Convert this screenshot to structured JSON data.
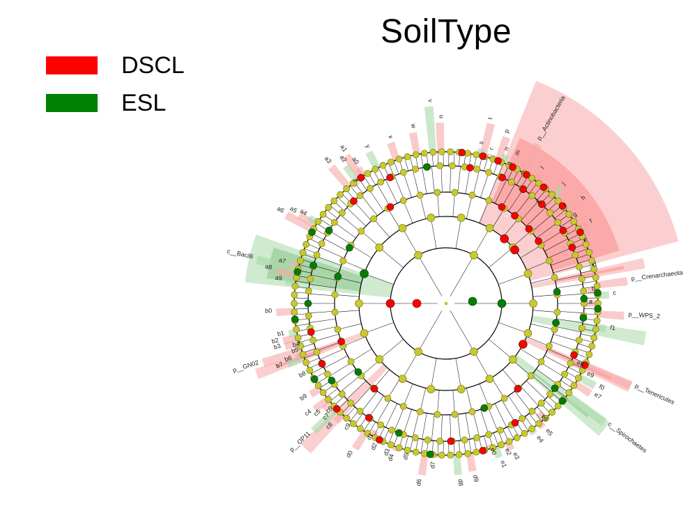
{
  "title": "SoilType",
  "legend": [
    {
      "label": "DSCL",
      "color": "#ff0000"
    },
    {
      "label": "ESL",
      "color": "#008000"
    }
  ],
  "colors": {
    "node_default": "#c8c832",
    "node_stroke": "#6e6e00",
    "dscl": "#ff0000",
    "esl": "#008000",
    "dscl_shade": "#f7a8a8",
    "esl_shade": "#a8d8a8"
  },
  "highlights": [
    {
      "name": "p__Actinobacteria",
      "group": "DSCL",
      "from": 22,
      "to": 75,
      "ring": 5
    },
    {
      "name": "c__Bacilli",
      "group": "ESL",
      "from": 276,
      "to": 290,
      "ring": 4
    },
    {
      "name": "p__Crenarchaeota",
      "group": "DSCL",
      "from": 77,
      "to": 80,
      "ring": 5
    },
    {
      "name": "p__WPS_2",
      "group": "ESL",
      "from": 98,
      "to": 102,
      "ring": 5
    },
    {
      "name": "p__Tenericutes",
      "group": "DSCL",
      "from": 113,
      "to": 116,
      "ring": 5
    },
    {
      "name": "c__Spirochaetes",
      "group": "ESL",
      "from": 126,
      "to": 131,
      "ring": 5
    },
    {
      "name": "p__GN02",
      "group": "DSCL",
      "from": 248,
      "to": 251,
      "ring": 5
    },
    {
      "name": "p__OP11",
      "group": "DSCL",
      "from": 222,
      "to": 226,
      "ring": 5
    }
  ],
  "labels": [
    {
      "text": "p__Actinobacteria",
      "angle": 30,
      "r": 270
    },
    {
      "text": "q",
      "angle": 25,
      "r": 218
    },
    {
      "text": "o",
      "angle": 31,
      "r": 215
    },
    {
      "text": "k",
      "angle": 43,
      "r": 195
    },
    {
      "text": "i",
      "angle": 51,
      "r": 220
    },
    {
      "text": "g",
      "angle": 56,
      "r": 222
    },
    {
      "text": "e",
      "angle": 66,
      "r": 218
    },
    {
      "text": "d",
      "angle": 76,
      "r": 218
    },
    {
      "text": "p__Crenarchaeota",
      "angle": 83,
      "r": 268
    },
    {
      "text": "b",
      "angle": 85,
      "r": 210
    },
    {
      "text": "c",
      "angle": 87,
      "r": 240
    },
    {
      "text": "a",
      "angle": 90,
      "r": 205
    },
    {
      "text": "p__WPS_2",
      "angle": 94,
      "r": 262
    },
    {
      "text": "f1",
      "angle": 99,
      "r": 238
    },
    {
      "text": "e8",
      "angle": 115,
      "r": 206
    },
    {
      "text": "e9",
      "angle": 117,
      "r": 226
    },
    {
      "text": "f0",
      "angle": 119,
      "r": 250
    },
    {
      "text": "e7",
      "angle": 122,
      "r": 250
    },
    {
      "text": "p__Tenericutes",
      "angle": 114,
      "r": 296
    },
    {
      "text": "c__Spirochaetes",
      "angle": 127,
      "r": 290
    },
    {
      "text": "e6",
      "angle": 140,
      "r": 212
    },
    {
      "text": "e5",
      "angle": 142,
      "r": 232
    },
    {
      "text": "e4",
      "angle": 146,
      "r": 232
    },
    {
      "text": "e3",
      "angle": 156,
      "r": 236
    },
    {
      "text": "e2",
      "angle": 158,
      "r": 226
    },
    {
      "text": "e1",
      "angle": 161,
      "r": 240
    },
    {
      "text": "e0",
      "angle": 163,
      "r": 218
    },
    {
      "text": "d9",
      "angle": 171,
      "r": 250
    },
    {
      "text": "d8",
      "angle": 176,
      "r": 253
    },
    {
      "text": "d7",
      "angle": 184,
      "r": 228
    },
    {
      "text": "d6",
      "angle": 188,
      "r": 255
    },
    {
      "text": "d5",
      "angle": 194,
      "r": 222
    },
    {
      "text": "d4",
      "angle": 199,
      "r": 230
    },
    {
      "text": "d3",
      "angle": 201,
      "r": 225
    },
    {
      "text": "d2",
      "angle": 206,
      "r": 225
    },
    {
      "text": "d1",
      "angle": 209,
      "r": 215
    },
    {
      "text": "d0",
      "angle": 212,
      "r": 252
    },
    {
      "text": "c9",
      "angle": 218,
      "r": 222
    },
    {
      "text": "c8",
      "angle": 223,
      "r": 238
    },
    {
      "text": "c7",
      "angle": 226,
      "r": 232
    },
    {
      "text": "c6",
      "angle": 227,
      "r": 222
    },
    {
      "text": "c5",
      "angle": 229,
      "r": 238
    },
    {
      "text": "c4",
      "angle": 231,
      "r": 248
    },
    {
      "text": "p__OP11",
      "angle": 226,
      "r": 270
    },
    {
      "text": "b9",
      "angle": 236,
      "r": 240
    },
    {
      "text": "b8",
      "angle": 243,
      "r": 225
    },
    {
      "text": "b7",
      "angle": 249,
      "r": 250
    },
    {
      "text": "b6",
      "angle": 250,
      "r": 235
    },
    {
      "text": "b5",
      "angle": 252,
      "r": 222
    },
    {
      "text": "b4",
      "angle": 254,
      "r": 218
    },
    {
      "text": "b3",
      "angle": 255,
      "r": 245
    },
    {
      "text": "b2",
      "angle": 257,
      "r": 246
    },
    {
      "text": "b1",
      "angle": 259,
      "r": 236
    },
    {
      "text": "p__GN02",
      "angle": 252,
      "r": 282
    },
    {
      "text": "b0",
      "angle": 267,
      "r": 250
    },
    {
      "text": "a9",
      "angle": 278,
      "r": 238
    },
    {
      "text": "a8",
      "angle": 281,
      "r": 255
    },
    {
      "text": "a7",
      "angle": 284,
      "r": 238
    },
    {
      "text": "c__Bacilli",
      "angle": 283,
      "r": 285
    },
    {
      "text": "a6",
      "angle": 299,
      "r": 268
    },
    {
      "text": "a5",
      "angle": 301,
      "r": 252
    },
    {
      "text": "a4",
      "angle": 302,
      "r": 238
    },
    {
      "text": "z",
      "angle": 323,
      "r": 218
    },
    {
      "text": "a3",
      "angle": 320,
      "r": 262
    },
    {
      "text": "a2",
      "angle": 324,
      "r": 250
    },
    {
      "text": "a1",
      "angle": 326,
      "r": 262
    },
    {
      "text": "a0",
      "angle": 327,
      "r": 238
    },
    {
      "text": "y",
      "angle": 333,
      "r": 250
    },
    {
      "text": "x",
      "angle": 341,
      "r": 250
    },
    {
      "text": "w",
      "angle": 349,
      "r": 256
    },
    {
      "text": "v",
      "angle": 355,
      "r": 290
    },
    {
      "text": "u",
      "angle": 358,
      "r": 266
    },
    {
      "text": "t",
      "angle": 14,
      "r": 272
    },
    {
      "text": "s",
      "angle": 13,
      "r": 234
    },
    {
      "text": "r",
      "angle": 17,
      "r": 230
    },
    {
      "text": "p",
      "angle": 20,
      "r": 260
    },
    {
      "text": "n",
      "angle": 22,
      "r": 236
    },
    {
      "text": "m",
      "angle": 26,
      "r": 236
    },
    {
      "text": "l",
      "angle": 36,
      "r": 238
    },
    {
      "text": "j",
      "angle": 45,
      "r": 240
    },
    {
      "text": "h",
      "angle": 53,
      "r": 246
    },
    {
      "text": "f",
      "angle": 61,
      "r": 238
    }
  ],
  "colored_nodes": [
    {
      "ring": 1,
      "angle": 270,
      "group": "DSCL"
    },
    {
      "ring": 1,
      "angle": 90,
      "group": "ESL"
    },
    {
      "ring": 2,
      "angle": 42,
      "group": "DSCL"
    },
    {
      "ring": 2,
      "angle": 52,
      "group": "DSCL"
    },
    {
      "ring": 2,
      "angle": 290,
      "group": "ESL"
    },
    {
      "ring": 2,
      "angle": 118,
      "group": "DSCL"
    },
    {
      "ring": 3,
      "angle": 30,
      "group": "DSCL"
    },
    {
      "ring": 3,
      "angle": 38,
      "group": "DSCL"
    },
    {
      "ring": 3,
      "angle": 48,
      "group": "DSCL"
    },
    {
      "ring": 3,
      "angle": 56,
      "group": "DSCL"
    },
    {
      "ring": 3,
      "angle": 84,
      "group": "ESL"
    },
    {
      "ring": 3,
      "angle": 100,
      "group": "ESL"
    },
    {
      "ring": 3,
      "angle": 284,
      "group": "ESL"
    },
    {
      "ring": 3,
      "angle": 300,
      "group": "ESL"
    },
    {
      "ring": 3,
      "angle": 330,
      "group": "DSCL"
    },
    {
      "ring": 3,
      "angle": 220,
      "group": "DSCL"
    },
    {
      "ring": 3,
      "angle": 232,
      "group": "ESL"
    },
    {
      "ring": 3,
      "angle": 250,
      "group": "DSCL"
    },
    {
      "ring": 3,
      "angle": 140,
      "group": "DSCL"
    },
    {
      "ring": 3,
      "angle": 160,
      "group": "ESL"
    },
    {
      "ring": 4,
      "angle": 24,
      "group": "DSCL"
    },
    {
      "ring": 4,
      "angle": 34,
      "group": "DSCL"
    },
    {
      "ring": 4,
      "angle": 44,
      "group": "DSCL"
    },
    {
      "ring": 4,
      "angle": 58,
      "group": "DSCL"
    },
    {
      "ring": 4,
      "angle": 66,
      "group": "DSCL"
    },
    {
      "ring": 4,
      "angle": 88,
      "group": "ESL"
    },
    {
      "ring": 4,
      "angle": 96,
      "group": "ESL"
    },
    {
      "ring": 4,
      "angle": 112,
      "group": "DSCL"
    },
    {
      "ring": 4,
      "angle": 128,
      "group": "ESL"
    },
    {
      "ring": 4,
      "angle": 150,
      "group": "DSCL"
    },
    {
      "ring": 4,
      "angle": 178,
      "group": "DSCL"
    },
    {
      "ring": 4,
      "angle": 200,
      "group": "ESL"
    },
    {
      "ring": 4,
      "angle": 214,
      "group": "DSCL"
    },
    {
      "ring": 4,
      "angle": 236,
      "group": "ESL"
    },
    {
      "ring": 4,
      "angle": 244,
      "group": "DSCL"
    },
    {
      "ring": 4,
      "angle": 258,
      "group": "DSCL"
    },
    {
      "ring": 4,
      "angle": 270,
      "group": "ESL"
    },
    {
      "ring": 4,
      "angle": 286,
      "group": "ESL"
    },
    {
      "ring": 4,
      "angle": 302,
      "group": "ESL"
    },
    {
      "ring": 4,
      "angle": 318,
      "group": "DSCL"
    },
    {
      "ring": 4,
      "angle": 336,
      "group": "DSCL"
    },
    {
      "ring": 4,
      "angle": 352,
      "group": "ESL"
    },
    {
      "ring": 4,
      "angle": 10,
      "group": "DSCL"
    },
    {
      "ring": 5,
      "angle": 14,
      "group": "DSCL"
    },
    {
      "ring": 5,
      "angle": 20,
      "group": "DSCL"
    },
    {
      "ring": 5,
      "angle": 26,
      "group": "DSCL"
    },
    {
      "ring": 5,
      "angle": 32,
      "group": "DSCL"
    },
    {
      "ring": 5,
      "angle": 40,
      "group": "DSCL"
    },
    {
      "ring": 5,
      "angle": 50,
      "group": "DSCL"
    },
    {
      "ring": 5,
      "angle": 62,
      "group": "DSCL"
    },
    {
      "ring": 5,
      "angle": 86,
      "group": "ESL"
    },
    {
      "ring": 5,
      "angle": 92,
      "group": "ESL"
    },
    {
      "ring": 5,
      "angle": 114,
      "group": "DSCL"
    },
    {
      "ring": 5,
      "angle": 130,
      "group": "ESL"
    },
    {
      "ring": 5,
      "angle": 166,
      "group": "DSCL"
    },
    {
      "ring": 5,
      "angle": 186,
      "group": "ESL"
    },
    {
      "ring": 5,
      "angle": 206,
      "group": "DSCL"
    },
    {
      "ring": 5,
      "angle": 226,
      "group": "DSCL"
    },
    {
      "ring": 5,
      "angle": 240,
      "group": "ESL"
    },
    {
      "ring": 5,
      "angle": 264,
      "group": "ESL"
    },
    {
      "ring": 5,
      "angle": 282,
      "group": "ESL"
    },
    {
      "ring": 5,
      "angle": 298,
      "group": "ESL"
    },
    {
      "ring": 5,
      "angle": 326,
      "group": "DSCL"
    },
    {
      "ring": 5,
      "angle": 6,
      "group": "DSCL"
    }
  ]
}
